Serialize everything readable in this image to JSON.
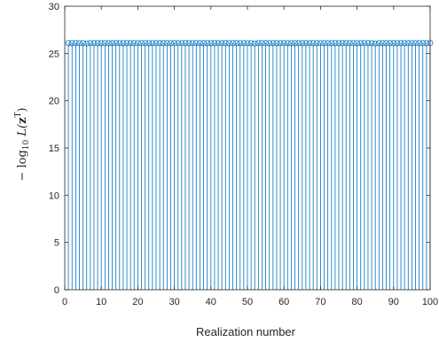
{
  "chart_data": {
    "type": "stem",
    "xlabel": "Realization number",
    "ylabel": {
      "prefix": "− log",
      "subscript": "10",
      "func": " L(",
      "bold": "z",
      "superscript": "T",
      "suffix": ")"
    },
    "xlim": [
      0,
      100
    ],
    "ylim": [
      0,
      30
    ],
    "xticks": [
      0,
      10,
      20,
      30,
      40,
      50,
      60,
      70,
      80,
      90,
      100
    ],
    "yticks": [
      0,
      5,
      10,
      15,
      20,
      25,
      30
    ],
    "grid": false,
    "marker": "open-circle",
    "color": "#0072BD",
    "x": [
      1,
      2,
      3,
      4,
      5,
      6,
      7,
      8,
      9,
      10,
      11,
      12,
      13,
      14,
      15,
      16,
      17,
      18,
      19,
      20,
      21,
      22,
      23,
      24,
      25,
      26,
      27,
      28,
      29,
      30,
      31,
      32,
      33,
      34,
      35,
      36,
      37,
      38,
      39,
      40,
      41,
      42,
      43,
      44,
      45,
      46,
      47,
      48,
      49,
      50,
      51,
      52,
      53,
      54,
      55,
      56,
      57,
      58,
      59,
      60,
      61,
      62,
      63,
      64,
      65,
      66,
      67,
      68,
      69,
      70,
      71,
      72,
      73,
      74,
      75,
      76,
      77,
      78,
      79,
      80,
      81,
      82,
      83,
      84,
      85,
      86,
      87,
      88,
      89,
      90,
      91,
      92,
      93,
      94,
      95,
      96,
      97,
      98,
      99,
      100
    ],
    "values": [
      26.1,
      26.1,
      26.1,
      26.1,
      26.1,
      26.05,
      26.1,
      26.1,
      26.1,
      26.1,
      26.1,
      26.1,
      26.1,
      26.1,
      26.1,
      26.1,
      26.1,
      26.1,
      26.1,
      26.1,
      26.1,
      26.1,
      26.1,
      26.1,
      26.1,
      26.1,
      26.1,
      26.1,
      26.1,
      26.1,
      26.1,
      26.1,
      26.1,
      26.1,
      26.1,
      26.1,
      26.1,
      26.1,
      26.1,
      26.1,
      26.1,
      26.1,
      26.1,
      26.1,
      26.1,
      26.1,
      26.1,
      26.1,
      26.1,
      26.1,
      26.1,
      26.05,
      26.1,
      26.1,
      26.1,
      26.1,
      26.1,
      26.1,
      26.1,
      26.1,
      26.1,
      26.1,
      26.1,
      26.1,
      26.1,
      26.1,
      26.1,
      26.1,
      26.1,
      26.1,
      26.1,
      26.1,
      26.1,
      26.1,
      26.1,
      26.1,
      26.1,
      26.1,
      26.1,
      26.1,
      26.1,
      26.1,
      26.1,
      26.1,
      26.05,
      26.1,
      26.1,
      26.1,
      26.1,
      26.1,
      26.1,
      26.1,
      26.1,
      26.1,
      26.1,
      26.1,
      26.1,
      26.1,
      26.1,
      26.1
    ]
  }
}
